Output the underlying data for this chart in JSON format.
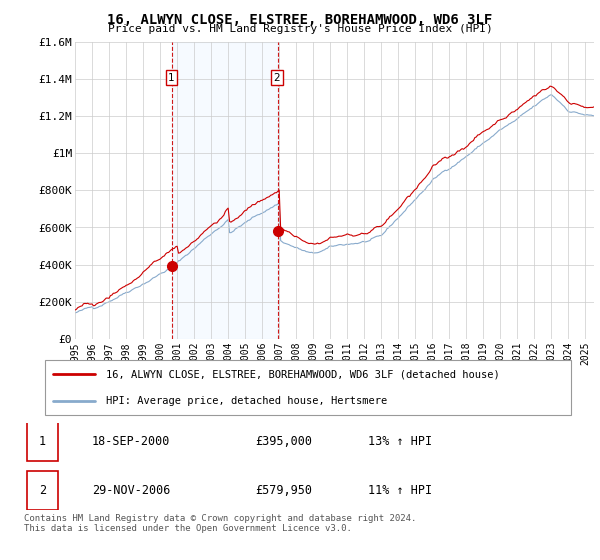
{
  "title": "16, ALWYN CLOSE, ELSTREE, BOREHAMWOOD, WD6 3LF",
  "subtitle": "Price paid vs. HM Land Registry's House Price Index (HPI)",
  "ylim": [
    0,
    1600000
  ],
  "yticks": [
    0,
    200000,
    400000,
    600000,
    800000,
    1000000,
    1200000,
    1400000,
    1600000
  ],
  "ytick_labels": [
    "£0",
    "£200K",
    "£400K",
    "£600K",
    "£800K",
    "£1M",
    "£1.2M",
    "£1.4M",
    "£1.6M"
  ],
  "background_color": "#ffffff",
  "grid_color": "#cccccc",
  "property_color": "#cc0000",
  "hpi_color": "#88aacc",
  "shade_color": "#ddeeff",
  "transaction_line_color": "#cc0000",
  "transaction_marker_color": "#cc0000",
  "xmin": 1995.0,
  "xmax": 2025.5,
  "xtick_years": [
    1995,
    1996,
    1997,
    1998,
    1999,
    2000,
    2001,
    2002,
    2003,
    2004,
    2005,
    2006,
    2007,
    2008,
    2009,
    2010,
    2011,
    2012,
    2013,
    2014,
    2015,
    2016,
    2017,
    2018,
    2019,
    2020,
    2021,
    2022,
    2023,
    2024,
    2025
  ],
  "transaction1_year": 2000.72,
  "transaction1_price": 395000,
  "transaction2_year": 2006.92,
  "transaction2_price": 579950,
  "legend_property": "16, ALWYN CLOSE, ELSTREE, BOREHAMWOOD, WD6 3LF (detached house)",
  "legend_hpi": "HPI: Average price, detached house, Hertsmere",
  "footer": "Contains HM Land Registry data © Crown copyright and database right 2024.\nThis data is licensed under the Open Government Licence v3.0.",
  "table_rows": [
    [
      "1",
      "18-SEP-2000",
      "£395,000",
      "13% ↑ HPI"
    ],
    [
      "2",
      "29-NOV-2006",
      "£579,950",
      "11% ↑ HPI"
    ]
  ]
}
